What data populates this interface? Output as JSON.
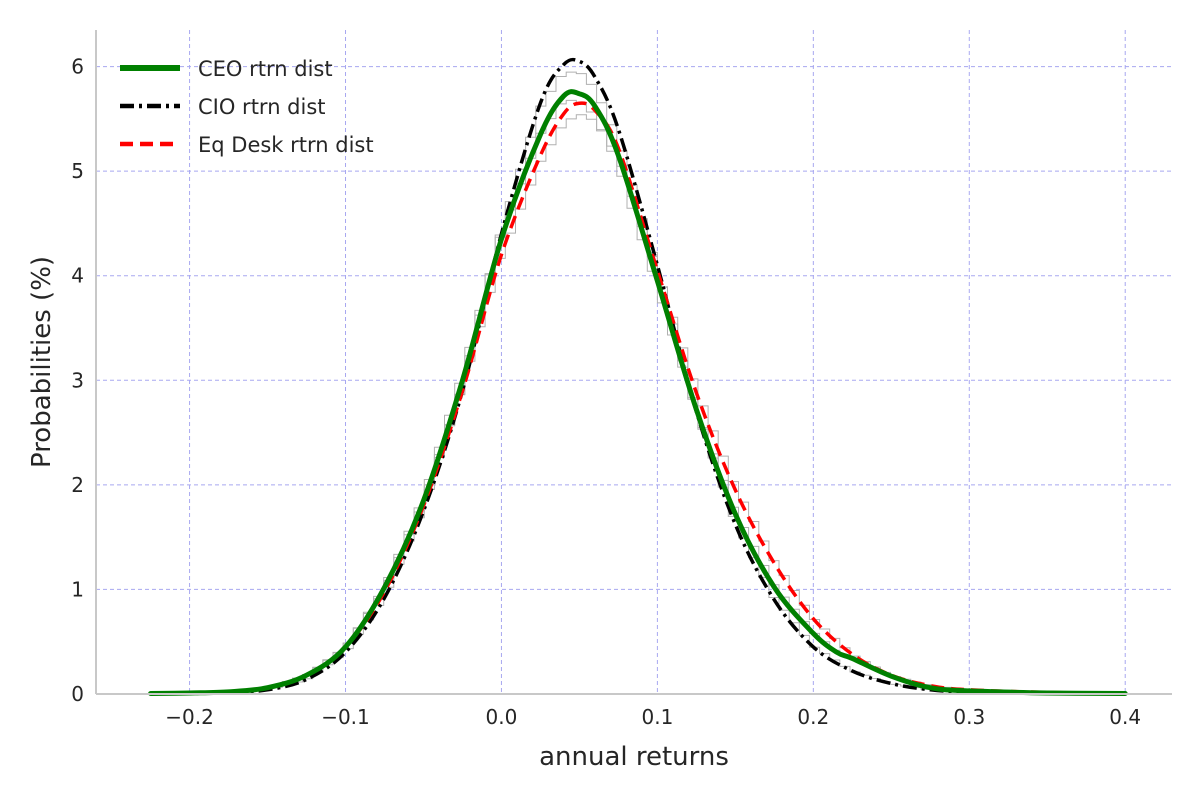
{
  "chart_data": {
    "type": "line",
    "title": "",
    "xlabel": "annual returns",
    "ylabel": "Probabilities (%)",
    "xlim": [
      -0.26,
      0.43
    ],
    "ylim": [
      0,
      6.35
    ],
    "xticks": [
      -0.2,
      -0.1,
      0.0,
      0.1,
      0.2,
      0.3,
      0.4
    ],
    "xtick_labels": [
      "−0.2",
      "−0.1",
      "0.0",
      "0.1",
      "0.2",
      "0.3",
      "0.4"
    ],
    "yticks": [
      0,
      1,
      2,
      3,
      4,
      5,
      6
    ],
    "ytick_labels": [
      "0",
      "1",
      "2",
      "3",
      "4",
      "5",
      "6"
    ],
    "grid": true,
    "legend_position": "top-left",
    "series": [
      {
        "name": "CEO rtrn dist",
        "color": "#008000",
        "style": "solid",
        "x": [
          -0.225,
          -0.2,
          -0.175,
          -0.15,
          -0.125,
          -0.1,
          -0.075,
          -0.05,
          -0.025,
          0.0,
          0.025,
          0.04,
          0.05,
          0.06,
          0.075,
          0.1,
          0.125,
          0.15,
          0.175,
          0.2,
          0.215,
          0.225,
          0.25,
          0.275,
          0.3,
          0.35,
          0.4
        ],
        "y": [
          0.005,
          0.01,
          0.02,
          0.06,
          0.18,
          0.45,
          1.02,
          1.85,
          3.0,
          4.35,
          5.35,
          5.72,
          5.74,
          5.62,
          5.15,
          3.95,
          2.72,
          1.72,
          1.02,
          0.58,
          0.4,
          0.34,
          0.17,
          0.06,
          0.03,
          0.01,
          0.005
        ]
      },
      {
        "name": "CIO rtrn dist",
        "color": "#000000",
        "style": "dashdot",
        "x": [
          -0.225,
          -0.2,
          -0.175,
          -0.15,
          -0.125,
          -0.1,
          -0.075,
          -0.05,
          -0.025,
          0.0,
          0.025,
          0.04,
          0.05,
          0.06,
          0.075,
          0.1,
          0.125,
          0.15,
          0.175,
          0.2,
          0.225,
          0.25,
          0.275,
          0.3,
          0.35,
          0.4
        ],
        "y": [
          0.003,
          0.006,
          0.012,
          0.04,
          0.14,
          0.4,
          0.92,
          1.75,
          2.9,
          4.4,
          5.65,
          6.02,
          6.05,
          5.9,
          5.4,
          4.1,
          2.7,
          1.62,
          0.9,
          0.45,
          0.22,
          0.1,
          0.04,
          0.02,
          0.01,
          0.005
        ]
      },
      {
        "name": "Eq Desk rtrn dist",
        "color": "#ff0000",
        "style": "dashed",
        "x": [
          -0.225,
          -0.2,
          -0.175,
          -0.15,
          -0.125,
          -0.1,
          -0.075,
          -0.05,
          -0.025,
          0.0,
          0.025,
          0.04,
          0.05,
          0.06,
          0.075,
          0.1,
          0.125,
          0.15,
          0.175,
          0.2,
          0.225,
          0.25,
          0.275,
          0.3,
          0.35,
          0.4
        ],
        "y": [
          0.005,
          0.01,
          0.02,
          0.06,
          0.18,
          0.45,
          0.98,
          1.8,
          2.9,
          4.2,
          5.15,
          5.55,
          5.65,
          5.58,
          5.22,
          4.05,
          2.88,
          1.95,
          1.25,
          0.72,
          0.38,
          0.18,
          0.08,
          0.04,
          0.015,
          0.005
        ]
      }
    ]
  }
}
